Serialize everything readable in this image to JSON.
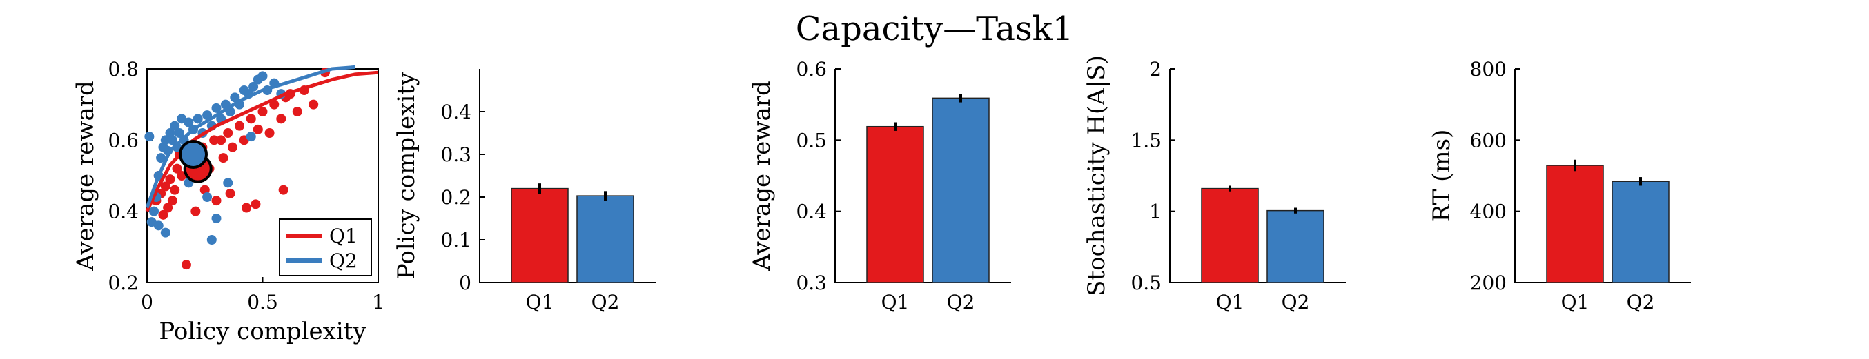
{
  "title": "Capacity—Task1",
  "colors": {
    "Q1": "#e31a1c",
    "Q2": "#3a7dbf",
    "axis": "#000000"
  },
  "chart_data": [
    {
      "type": "scatter",
      "xlabel": "Policy complexity",
      "ylabel": "Average reward",
      "xlim": [
        0,
        1
      ],
      "ylim": [
        0.2,
        0.8
      ],
      "xticks": [
        "0",
        "0.5",
        "1"
      ],
      "yticks": [
        "0.2",
        "0.4",
        "0.6",
        "0.8"
      ],
      "legend": {
        "position": "bottom-right",
        "entries": [
          "Q1",
          "Q2"
        ]
      },
      "series": [
        {
          "name": "Q1",
          "points": [
            [
              0.04,
              0.43
            ],
            [
              0.06,
              0.45
            ],
            [
              0.08,
              0.47
            ],
            [
              0.1,
              0.49
            ],
            [
              0.12,
              0.46
            ],
            [
              0.13,
              0.52
            ],
            [
              0.15,
              0.5
            ],
            [
              0.17,
              0.55
            ],
            [
              0.18,
              0.53
            ],
            [
              0.2,
              0.57
            ],
            [
              0.22,
              0.54
            ],
            [
              0.24,
              0.58
            ],
            [
              0.25,
              0.46
            ],
            [
              0.27,
              0.52
            ],
            [
              0.29,
              0.6
            ],
            [
              0.3,
              0.43
            ],
            [
              0.32,
              0.6
            ],
            [
              0.33,
              0.55
            ],
            [
              0.35,
              0.62
            ],
            [
              0.37,
              0.58
            ],
            [
              0.4,
              0.64
            ],
            [
              0.42,
              0.6
            ],
            [
              0.45,
              0.66
            ],
            [
              0.48,
              0.63
            ],
            [
              0.5,
              0.68
            ],
            [
              0.53,
              0.62
            ],
            [
              0.55,
              0.7
            ],
            [
              0.58,
              0.66
            ],
            [
              0.6,
              0.72
            ],
            [
              0.62,
              0.73
            ],
            [
              0.65,
              0.68
            ],
            [
              0.68,
              0.74
            ],
            [
              0.72,
              0.7
            ],
            [
              0.77,
              0.79
            ],
            [
              0.59,
              0.46
            ],
            [
              0.47,
              0.42
            ],
            [
              0.43,
              0.41
            ],
            [
              0.36,
              0.45
            ],
            [
              0.17,
              0.25
            ],
            [
              0.21,
              0.4
            ],
            [
              0.07,
              0.39
            ],
            [
              0.09,
              0.41
            ],
            [
              0.11,
              0.43
            ],
            [
              0.05,
              0.5
            ],
            [
              0.14,
              0.56
            ]
          ],
          "curve": [
            [
              0.0,
              0.4
            ],
            [
              0.05,
              0.47
            ],
            [
              0.1,
              0.53
            ],
            [
              0.2,
              0.6
            ],
            [
              0.3,
              0.64
            ],
            [
              0.4,
              0.67
            ],
            [
              0.5,
              0.7
            ],
            [
              0.6,
              0.73
            ],
            [
              0.7,
              0.75
            ],
            [
              0.8,
              0.77
            ],
            [
              0.9,
              0.785
            ],
            [
              1.0,
              0.79
            ]
          ],
          "mean": [
            0.22,
            0.52
          ]
        },
        {
          "name": "Q2",
          "points": [
            [
              0.01,
              0.61
            ],
            [
              0.02,
              0.37
            ],
            [
              0.03,
              0.4
            ],
            [
              0.04,
              0.44
            ],
            [
              0.05,
              0.5
            ],
            [
              0.06,
              0.55
            ],
            [
              0.07,
              0.58
            ],
            [
              0.08,
              0.6
            ],
            [
              0.09,
              0.57
            ],
            [
              0.1,
              0.62
            ],
            [
              0.11,
              0.6
            ],
            [
              0.12,
              0.64
            ],
            [
              0.13,
              0.58
            ],
            [
              0.14,
              0.62
            ],
            [
              0.15,
              0.66
            ],
            [
              0.16,
              0.6
            ],
            [
              0.18,
              0.65
            ],
            [
              0.2,
              0.63
            ],
            [
              0.22,
              0.66
            ],
            [
              0.24,
              0.62
            ],
            [
              0.26,
              0.67
            ],
            [
              0.28,
              0.64
            ],
            [
              0.3,
              0.69
            ],
            [
              0.32,
              0.66
            ],
            [
              0.34,
              0.7
            ],
            [
              0.36,
              0.68
            ],
            [
              0.38,
              0.72
            ],
            [
              0.4,
              0.7
            ],
            [
              0.42,
              0.74
            ],
            [
              0.44,
              0.73
            ],
            [
              0.46,
              0.75
            ],
            [
              0.48,
              0.77
            ],
            [
              0.5,
              0.78
            ],
            [
              0.52,
              0.74
            ],
            [
              0.55,
              0.76
            ],
            [
              0.58,
              0.73
            ],
            [
              0.3,
              0.38
            ],
            [
              0.28,
              0.32
            ],
            [
              0.26,
              0.44
            ],
            [
              0.35,
              0.48
            ],
            [
              0.05,
              0.36
            ],
            [
              0.08,
              0.34
            ],
            [
              0.18,
              0.48
            ],
            [
              0.45,
              0.61
            ]
          ],
          "curve": [
            [
              0.0,
              0.41
            ],
            [
              0.05,
              0.5
            ],
            [
              0.1,
              0.57
            ],
            [
              0.2,
              0.63
            ],
            [
              0.3,
              0.67
            ],
            [
              0.4,
              0.71
            ],
            [
              0.5,
              0.74
            ],
            [
              0.6,
              0.76
            ],
            [
              0.7,
              0.78
            ],
            [
              0.8,
              0.8
            ],
            [
              0.9,
              0.805
            ]
          ],
          "mean": [
            0.2,
            0.56
          ]
        }
      ]
    },
    {
      "type": "bar",
      "categories": [
        "Q1",
        "Q2"
      ],
      "values": [
        0.22,
        0.203
      ],
      "errors": [
        0.012,
        0.011
      ],
      "xlabel": "",
      "ylabel": "Policy complexity",
      "ylim": [
        0,
        0.5
      ],
      "yticks": [
        "0",
        "0.1",
        "0.2",
        "0.3",
        "0.4"
      ],
      "ytickvals": [
        0,
        0.1,
        0.2,
        0.3,
        0.4
      ]
    },
    {
      "type": "bar",
      "categories": [
        "Q1",
        "Q2"
      ],
      "values": [
        0.519,
        0.559
      ],
      "errors": [
        0.006,
        0.006
      ],
      "xlabel": "",
      "ylabel": "Average reward",
      "ylim": [
        0.3,
        0.6
      ],
      "yticks": [
        "0.3",
        "0.4",
        "0.5",
        "0.6"
      ],
      "ytickvals": [
        0.3,
        0.4,
        0.5,
        0.6
      ]
    },
    {
      "type": "bar",
      "categories": [
        "Q1",
        "Q2"
      ],
      "values": [
        1.16,
        1.005
      ],
      "errors": [
        0.02,
        0.02
      ],
      "xlabel": "",
      "ylabel": "Stochasticity H(A|S)",
      "ylim": [
        0.5,
        2
      ],
      "yticks": [
        "0.5",
        "1",
        "1.5",
        "2"
      ],
      "ytickvals": [
        0.5,
        1,
        1.5,
        2
      ]
    },
    {
      "type": "bar",
      "categories": [
        "Q1",
        "Q2"
      ],
      "values": [
        529,
        484
      ],
      "errors": [
        16,
        12
      ],
      "xlabel": "",
      "ylabel": "RT (ms)",
      "ylim": [
        200,
        800
      ],
      "yticks": [
        "200",
        "400",
        "600",
        "800"
      ],
      "ytickvals": [
        200,
        400,
        600,
        800
      ]
    }
  ]
}
